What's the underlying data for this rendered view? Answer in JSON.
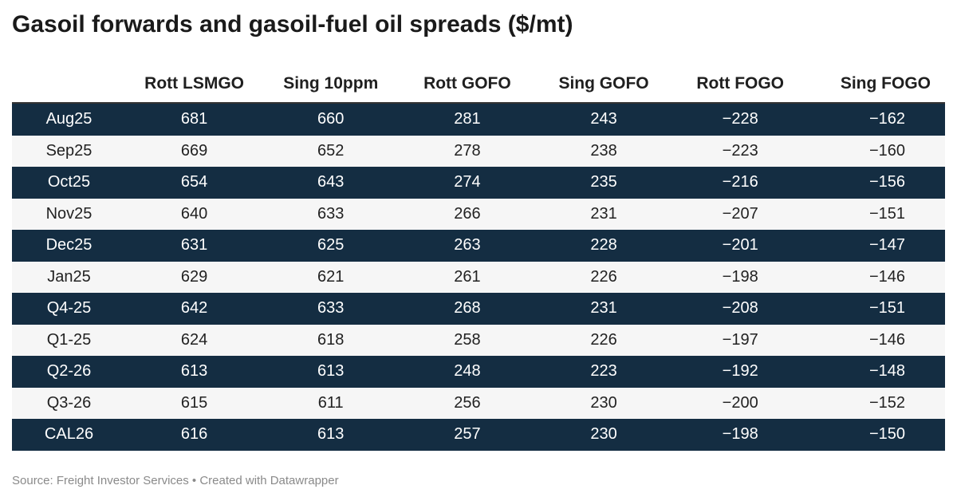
{
  "chart_data": {
    "type": "table",
    "title": "Gasoil forwards and gasoil-fuel oil spreads ($/mt)",
    "columns": [
      "",
      "Rott LSMGO",
      "Sing 10ppm",
      "Rott GOFO",
      "Sing GOFO",
      "Rott FOGO",
      "Sing FOGO"
    ],
    "rows": [
      {
        "label": "Aug25",
        "values": [
          "681",
          "660",
          "281",
          "243",
          "−228",
          "−162"
        ]
      },
      {
        "label": "Sep25",
        "values": [
          "669",
          "652",
          "278",
          "238",
          "−223",
          "−160"
        ]
      },
      {
        "label": "Oct25",
        "values": [
          "654",
          "643",
          "274",
          "235",
          "−216",
          "−156"
        ]
      },
      {
        "label": "Nov25",
        "values": [
          "640",
          "633",
          "266",
          "231",
          "−207",
          "−151"
        ]
      },
      {
        "label": "Dec25",
        "values": [
          "631",
          "625",
          "263",
          "228",
          "−201",
          "−147"
        ]
      },
      {
        "label": "Jan25",
        "values": [
          "629",
          "621",
          "261",
          "226",
          "−198",
          "−146"
        ]
      },
      {
        "label": "Q4-25",
        "values": [
          "642",
          "633",
          "268",
          "231",
          "−208",
          "−151"
        ]
      },
      {
        "label": "Q1-25",
        "values": [
          "624",
          "618",
          "258",
          "226",
          "−197",
          "−146"
        ]
      },
      {
        "label": "Q2-26",
        "values": [
          "613",
          "613",
          "248",
          "223",
          "−192",
          "−148"
        ]
      },
      {
        "label": "Q3-26",
        "values": [
          "615",
          "611",
          "256",
          "230",
          "−200",
          "−152"
        ]
      },
      {
        "label": "CAL26",
        "values": [
          "616",
          "613",
          "257",
          "230",
          "−198",
          "−150"
        ]
      }
    ],
    "source": "Source: Freight Investor Services • Created with Datawrapper"
  },
  "colors": {
    "dark_row": "#142d42",
    "light_row": "#f6f6f6",
    "dark_row_text": "#ffffff",
    "source_text": "#8a8a8a"
  }
}
